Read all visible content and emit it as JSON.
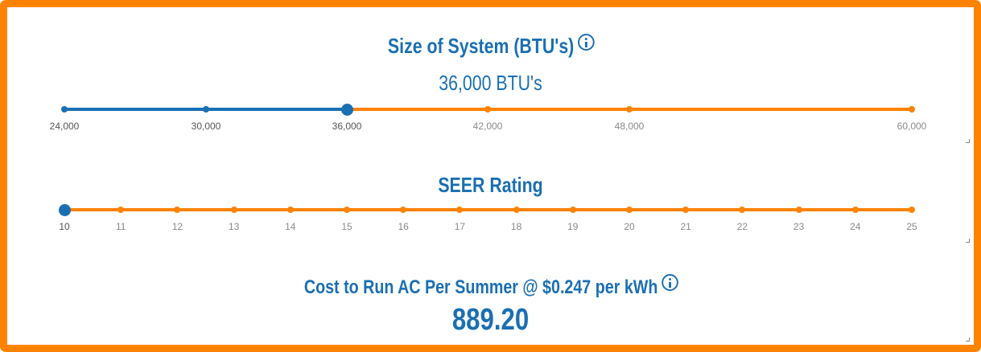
{
  "size": {
    "title": "Size of System (BTU's)",
    "value_text": "36,000 BTU's",
    "ticks": [
      "24,000",
      "30,000",
      "36,000",
      "42,000",
      "48,000",
      "60,000"
    ],
    "selected": "36,000"
  },
  "seer": {
    "title": "SEER Rating",
    "ticks": [
      "10",
      "11",
      "12",
      "13",
      "14",
      "15",
      "16",
      "17",
      "18",
      "19",
      "20",
      "21",
      "22",
      "23",
      "24",
      "25"
    ],
    "selected": "10"
  },
  "cost": {
    "title": "Cost to Run AC Per Summer @ $0.247 per kWh",
    "value": "889.20"
  },
  "colors": {
    "accent_blue": "#1a6fb3",
    "accent_orange": "#ff8200"
  }
}
